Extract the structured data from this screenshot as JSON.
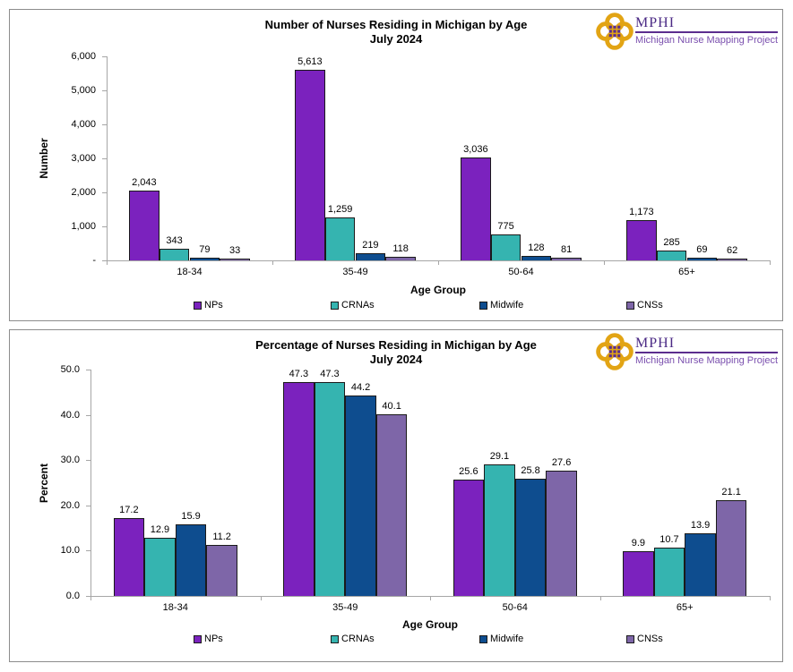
{
  "branding": {
    "logo_text": "MPHI",
    "tagline": "Michigan Nurse Mapping Project",
    "brand_purple": "#5B2D8E",
    "brand_gold": "#E2A414"
  },
  "chart_data": [
    {
      "type": "bar",
      "title": "Number of Nurses Residing in Michigan by Age",
      "subtitle": "July 2024",
      "xlabel": "Age Group",
      "ylabel": "Number",
      "categories": [
        "18-34",
        "35-49",
        "50-64",
        "65+"
      ],
      "series": [
        {
          "name": "NPs",
          "color": "#7B22BE",
          "values": [
            2043,
            5613,
            3036,
            1173
          ],
          "labels": [
            "2,043",
            "5,613",
            "3,036",
            "1,173"
          ]
        },
        {
          "name": "CRNAs",
          "color": "#35B4B0",
          "values": [
            343,
            1259,
            775,
            285
          ],
          "labels": [
            "343",
            "1,259",
            "775",
            "285"
          ]
        },
        {
          "name": "Midwife",
          "color": "#0E4D8F",
          "values": [
            79,
            219,
            128,
            69
          ],
          "labels": [
            "79",
            "219",
            "128",
            "69"
          ]
        },
        {
          "name": "CNSs",
          "color": "#7E66A8",
          "values": [
            33,
            118,
            81,
            62
          ],
          "labels": [
            "33",
            "118",
            "81",
            "62"
          ]
        }
      ],
      "ylim": [
        0,
        6000
      ],
      "yticks": [
        "6,000",
        "5,000",
        "4,000",
        "3,000",
        "2,000",
        "1,000",
        "-"
      ],
      "grid": false,
      "legend_position": "bottom"
    },
    {
      "type": "bar",
      "title": "Percentage of Nurses Residing in Michigan by Age",
      "subtitle": "July 2024",
      "xlabel": "Age Group",
      "ylabel": "Percent",
      "categories": [
        "18-34",
        "35-49",
        "50-64",
        "65+"
      ],
      "series": [
        {
          "name": "NPs",
          "color": "#7B22BE",
          "values": [
            17.2,
            47.3,
            25.6,
            9.9
          ],
          "labels": [
            "17.2",
            "47.3",
            "25.6",
            "9.9"
          ]
        },
        {
          "name": "CRNAs",
          "color": "#35B4B0",
          "values": [
            12.9,
            47.3,
            29.1,
            10.7
          ],
          "labels": [
            "12.9",
            "47.3",
            "29.1",
            "10.7"
          ]
        },
        {
          "name": "Midwife",
          "color": "#0E4D8F",
          "values": [
            15.9,
            44.2,
            25.8,
            13.9
          ],
          "labels": [
            "15.9",
            "44.2",
            "25.8",
            "13.9"
          ]
        },
        {
          "name": "CNSs",
          "color": "#7E66A8",
          "values": [
            11.2,
            40.1,
            27.6,
            21.1
          ],
          "labels": [
            "11.2",
            "40.1",
            "27.6",
            "21.1"
          ]
        }
      ],
      "ylim": [
        0,
        50
      ],
      "yticks": [
        "50.0",
        "40.0",
        "30.0",
        "20.0",
        "10.0",
        "0.0"
      ],
      "grid": false,
      "legend_position": "bottom"
    }
  ]
}
